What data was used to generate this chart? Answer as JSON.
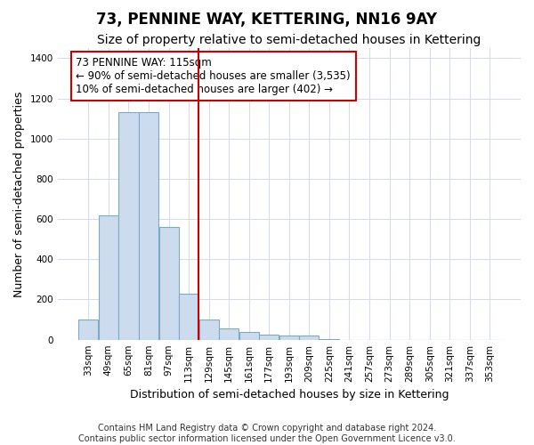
{
  "title": "73, PENNINE WAY, KETTERING, NN16 9AY",
  "subtitle": "Size of property relative to semi-detached houses in Kettering",
  "xlabel": "Distribution of semi-detached houses by size in Kettering",
  "ylabel": "Number of semi-detached properties",
  "footer_line1": "Contains HM Land Registry data © Crown copyright and database right 2024.",
  "footer_line2": "Contains public sector information licensed under the Open Government Licence v3.0.",
  "bar_labels": [
    "33sqm",
    "49sqm",
    "65sqm",
    "81sqm",
    "97sqm",
    "113sqm",
    "129sqm",
    "145sqm",
    "161sqm",
    "177sqm",
    "193sqm",
    "209sqm",
    "225sqm",
    "241sqm",
    "257sqm",
    "273sqm",
    "289sqm",
    "305sqm",
    "321sqm",
    "337sqm",
    "353sqm"
  ],
  "bar_values": [
    100,
    620,
    1130,
    1130,
    560,
    230,
    100,
    55,
    40,
    25,
    20,
    20,
    5,
    0,
    0,
    0,
    0,
    0,
    0,
    0,
    0
  ],
  "bar_color": "#ccdcee",
  "bar_edgecolor": "#7aaac8",
  "property_line_x": 5.5,
  "property_line_color": "#cc0000",
  "annotation_text": "73 PENNINE WAY: 115sqm\n← 90% of semi-detached houses are smaller (3,535)\n10% of semi-detached houses are larger (402) →",
  "annotation_box_facecolor": "#ffffff",
  "annotation_box_edgecolor": "#cc0000",
  "ylim": [
    0,
    1450
  ],
  "yticks": [
    0,
    200,
    400,
    600,
    800,
    1000,
    1200,
    1400
  ],
  "bg_color": "#ffffff",
  "plot_bg_color": "#ffffff",
  "grid_color": "#d8dce8",
  "title_fontsize": 12,
  "subtitle_fontsize": 10,
  "axis_label_fontsize": 9,
  "tick_fontsize": 7.5,
  "footer_fontsize": 7,
  "annotation_fontsize": 8.5
}
